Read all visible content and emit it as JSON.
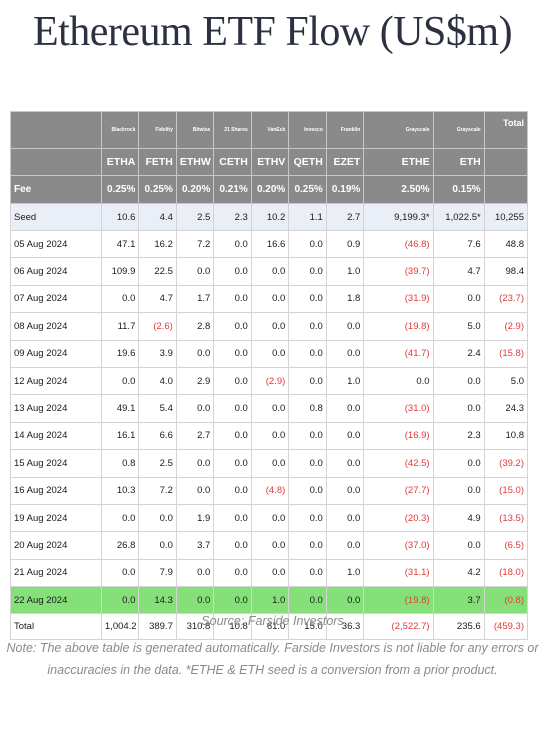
{
  "title": "Ethereum ETF Flow (US$m)",
  "issuers": [
    "",
    "Blackrock",
    "Fidelity",
    "Bitwise",
    "21 Shares",
    "VanEck",
    "Invesco",
    "Franklin",
    "Grayscale",
    "Grayscale",
    "Total"
  ],
  "tickers": [
    "",
    "ETHA",
    "FETH",
    "ETHW",
    "CETH",
    "ETHV",
    "QETH",
    "EZET",
    "ETHE",
    "ETH",
    ""
  ],
  "fees": [
    "Fee",
    "0.25%",
    "0.25%",
    "0.20%",
    "0.21%",
    "0.20%",
    "0.25%",
    "0.19%",
    "2.50%",
    "0.15%",
    ""
  ],
  "seed": [
    "Seed",
    "10.6",
    "4.4",
    "2.5",
    "2.3",
    "10.2",
    "1.1",
    "2.7",
    "9,199.3*",
    "1,022.5*",
    "10,255"
  ],
  "rows": [
    [
      "05 Aug 2024",
      "47.1",
      "16.2",
      "7.2",
      "0.0",
      "16.6",
      "0.0",
      "0.9",
      "(46.8)",
      "7.6",
      "48.8"
    ],
    [
      "06 Aug 2024",
      "109.9",
      "22.5",
      "0.0",
      "0.0",
      "0.0",
      "0.0",
      "1.0",
      "(39.7)",
      "4.7",
      "98.4"
    ],
    [
      "07 Aug 2024",
      "0.0",
      "4.7",
      "1.7",
      "0.0",
      "0.0",
      "0.0",
      "1.8",
      "(31.9)",
      "0.0",
      "(23.7)"
    ],
    [
      "08 Aug 2024",
      "11.7",
      "(2.6)",
      "2.8",
      "0.0",
      "0.0",
      "0.0",
      "0.0",
      "(19.8)",
      "5.0",
      "(2.9)"
    ],
    [
      "09 Aug 2024",
      "19.6",
      "3.9",
      "0.0",
      "0.0",
      "0.0",
      "0.0",
      "0.0",
      "(41.7)",
      "2.4",
      "(15.8)"
    ],
    [
      "12 Aug 2024",
      "0.0",
      "4.0",
      "2.9",
      "0.0",
      "(2.9)",
      "0.0",
      "1.0",
      "0.0",
      "0.0",
      "5.0"
    ],
    [
      "13 Aug 2024",
      "49.1",
      "5.4",
      "0.0",
      "0.0",
      "0.0",
      "0.8",
      "0.0",
      "(31.0)",
      "0.0",
      "24.3"
    ],
    [
      "14 Aug 2024",
      "16.1",
      "6.6",
      "2.7",
      "0.0",
      "0.0",
      "0.0",
      "0.0",
      "(16.9)",
      "2.3",
      "10.8"
    ],
    [
      "15 Aug 2024",
      "0.8",
      "2.5",
      "0.0",
      "0.0",
      "0.0",
      "0.0",
      "0.0",
      "(42.5)",
      "0.0",
      "(39.2)"
    ],
    [
      "16 Aug 2024",
      "10.3",
      "7.2",
      "0.0",
      "0.0",
      "(4.8)",
      "0.0",
      "0.0",
      "(27.7)",
      "0.0",
      "(15.0)"
    ],
    [
      "19 Aug 2024",
      "0.0",
      "0.0",
      "1.9",
      "0.0",
      "0.0",
      "0.0",
      "0.0",
      "(20.3)",
      "4.9",
      "(13.5)"
    ],
    [
      "20 Aug 2024",
      "26.8",
      "0.0",
      "3.7",
      "0.0",
      "0.0",
      "0.0",
      "0.0",
      "(37.0)",
      "0.0",
      "(6.5)"
    ],
    [
      "21 Aug 2024",
      "0.0",
      "7.9",
      "0.0",
      "0.0",
      "0.0",
      "0.0",
      "1.0",
      "(31.1)",
      "4.2",
      "(18.0)"
    ],
    [
      "22 Aug 2024",
      "0.0",
      "14.3",
      "0.0",
      "0.0",
      "1.0",
      "0.0",
      "0.0",
      "(19.8)",
      "3.7",
      "(0.8)"
    ]
  ],
  "highlighted_row_index": 13,
  "total": [
    "Total",
    "1,004.2",
    "389.7",
    "310.8",
    "10.8",
    "61.0",
    "15.0",
    "36.3",
    "(2,522.7)",
    "235.6",
    "(459.3)"
  ],
  "source": "Source: Farside Investors",
  "note": "Note: The above table is generated automatically. Farside Investors is not liable for any errors or inaccuracies in the data. *ETHE & ETH seed is a conversion from a prior product.",
  "colors": {
    "header_bg": "#8a8a8a",
    "seed_bg": "#e9eef7",
    "highlight_bg": "#86e07a",
    "negative": "#e23a3a"
  }
}
